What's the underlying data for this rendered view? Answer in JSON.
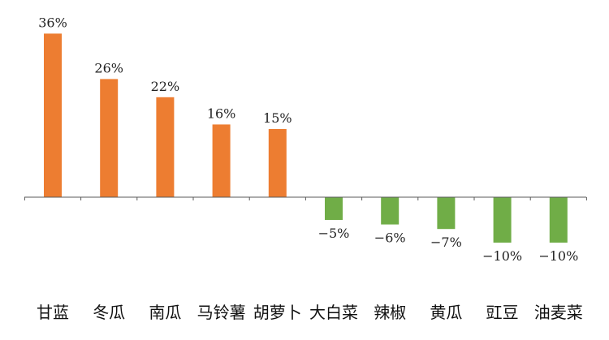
{
  "chart_data": {
    "type": "bar",
    "categories": [
      "甘蓝",
      "冬瓜",
      "南瓜",
      "马铃薯",
      "胡萝卜",
      "大白菜",
      "辣椒",
      "黄瓜",
      "豇豆",
      "油麦菜"
    ],
    "values": [
      36,
      26,
      22,
      16,
      15,
      -5,
      -6,
      -7,
      -10,
      -10
    ],
    "labels": [
      "36%",
      "26%",
      "22%",
      "16%",
      "15%",
      "−5%",
      "−6%",
      "−7%",
      "−10%",
      "−10%"
    ],
    "unit": "%",
    "colors": {
      "positive": "#ED7D31",
      "negative": "#70AD47",
      "axis": "#595959"
    },
    "grid": false,
    "legend": "none"
  }
}
